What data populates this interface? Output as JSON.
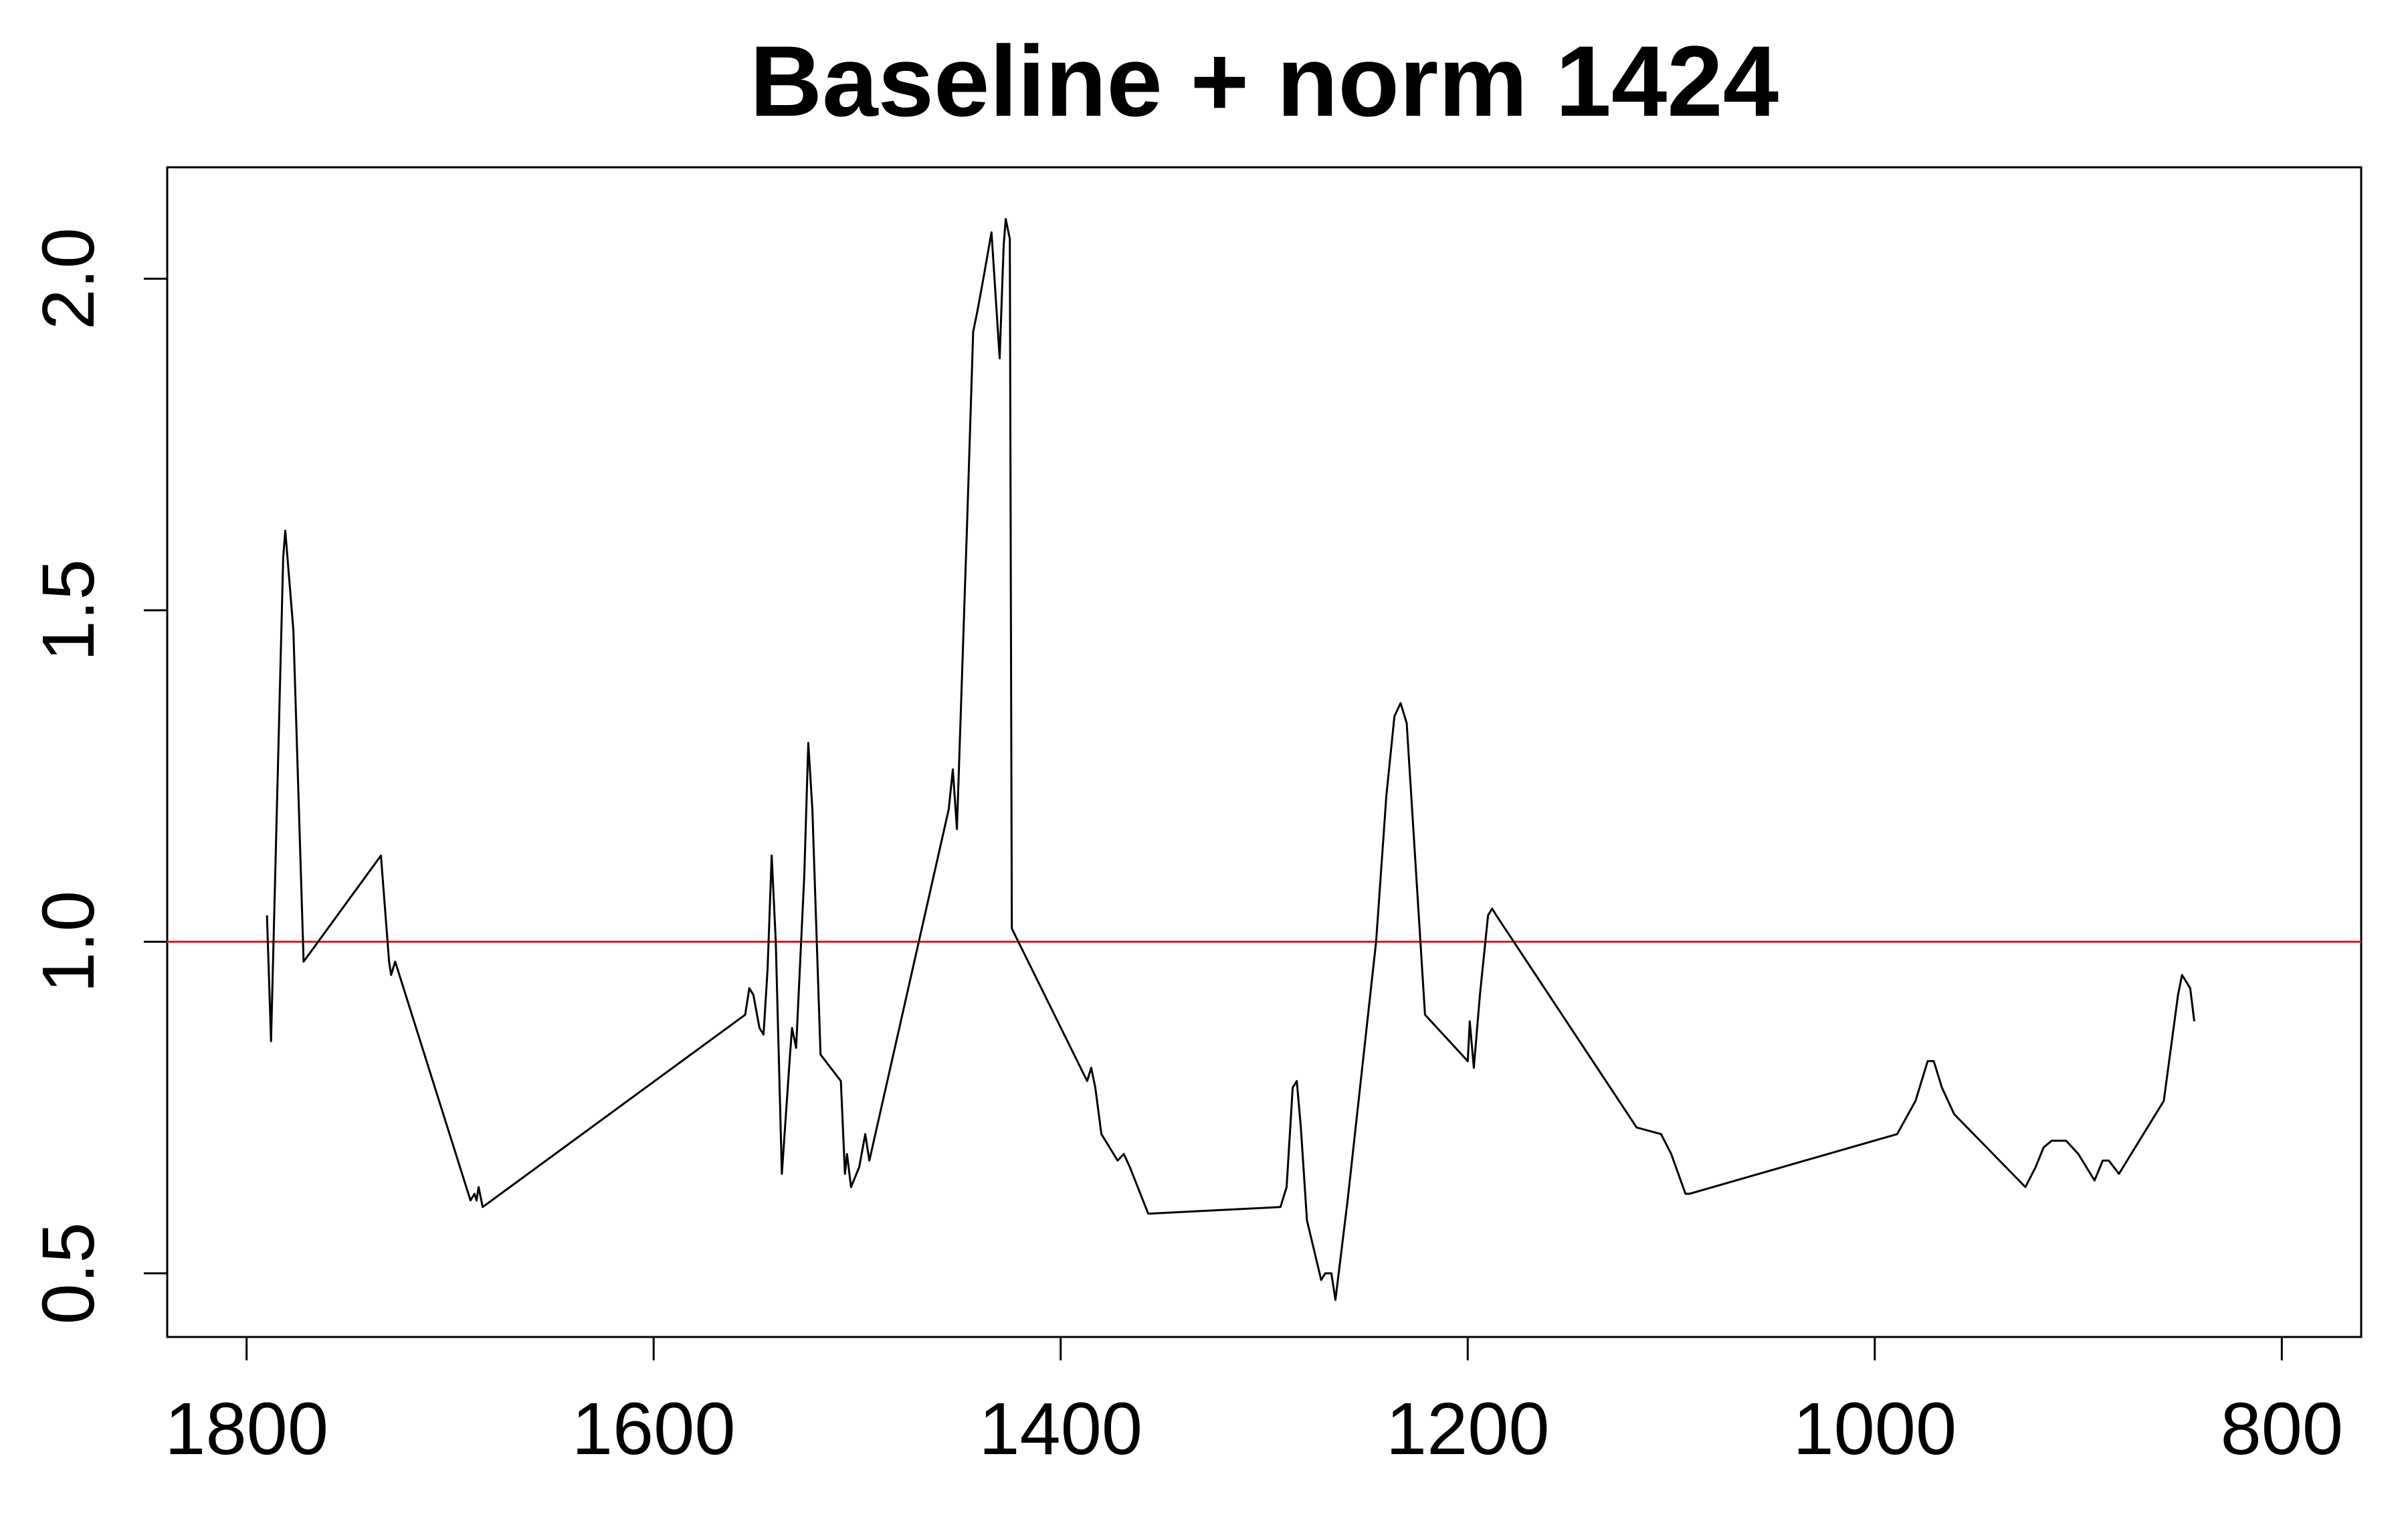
{
  "chart_data": {
    "type": "line",
    "title": "Baseline + norm 1424",
    "xlabel": "",
    "ylabel": "",
    "xlim": [
      1839,
      761
    ],
    "ylim": [
      0.404,
      2.168
    ],
    "x_reversed": true,
    "x_ticks": [
      1800,
      1600,
      1400,
      1200,
      1000,
      800
    ],
    "x_tick_labels": [
      "1800",
      "1600",
      "1400",
      "1200",
      "1000",
      "800"
    ],
    "y_ticks": [
      0.5,
      1.0,
      1.5,
      2.0
    ],
    "y_tick_labels": [
      "0.5",
      "1.0",
      "1.5",
      "2.0"
    ],
    "grid": false,
    "legend": "none",
    "reference_line": {
      "y": 1.0,
      "color": "#e8141b"
    },
    "series": [
      {
        "color": "#000000",
        "points": [
          [
            1790,
            1.04
          ],
          [
            1788,
            0.85
          ],
          [
            1782,
            1.58
          ],
          [
            1781,
            1.62
          ],
          [
            1777,
            1.47
          ],
          [
            1772,
            0.97
          ],
          [
            1734,
            1.13
          ],
          [
            1730,
            0.97
          ],
          [
            1729,
            0.95
          ],
          [
            1727,
            0.97
          ],
          [
            1690,
            0.61
          ],
          [
            1688,
            0.62
          ],
          [
            1687,
            0.61
          ],
          [
            1686,
            0.63
          ],
          [
            1684,
            0.6
          ],
          [
            1555,
            0.89
          ],
          [
            1553,
            0.93
          ],
          [
            1551,
            0.92
          ],
          [
            1548,
            0.87
          ],
          [
            1546,
            0.86
          ],
          [
            1544,
            0.96
          ],
          [
            1542,
            1.13
          ],
          [
            1540,
            1.0
          ],
          [
            1537,
            0.65
          ],
          [
            1533,
            0.83
          ],
          [
            1532,
            0.87
          ],
          [
            1530,
            0.84
          ],
          [
            1526,
            1.1
          ],
          [
            1524,
            1.3
          ],
          [
            1522,
            1.2
          ],
          [
            1518,
            0.83
          ],
          [
            1508,
            0.79
          ],
          [
            1506,
            0.65
          ],
          [
            1505,
            0.68
          ],
          [
            1503,
            0.63
          ],
          [
            1499,
            0.66
          ],
          [
            1496,
            0.71
          ],
          [
            1494,
            0.67
          ],
          [
            1455,
            1.2
          ],
          [
            1453,
            1.26
          ],
          [
            1451,
            1.17
          ],
          [
            1446,
            1.63
          ],
          [
            1443,
            1.92
          ],
          [
            1441,
            1.95
          ],
          [
            1438,
            2.0
          ],
          [
            1434,
            2.07
          ],
          [
            1430,
            1.88
          ],
          [
            1428,
            2.05
          ],
          [
            1427,
            2.09
          ],
          [
            1425,
            2.06
          ],
          [
            1424,
            1.02
          ],
          [
            1387,
            0.79
          ],
          [
            1385,
            0.81
          ],
          [
            1383,
            0.78
          ],
          [
            1380,
            0.71
          ],
          [
            1372,
            0.67
          ],
          [
            1369,
            0.68
          ],
          [
            1366,
            0.66
          ],
          [
            1357,
            0.59
          ],
          [
            1292,
            0.6
          ],
          [
            1289,
            0.63
          ],
          [
            1286,
            0.78
          ],
          [
            1284,
            0.79
          ],
          [
            1282,
            0.72
          ],
          [
            1279,
            0.58
          ],
          [
            1272,
            0.49
          ],
          [
            1270,
            0.5
          ],
          [
            1267,
            0.5
          ],
          [
            1265,
            0.46
          ],
          [
            1259,
            0.61
          ],
          [
            1245,
            1.0
          ],
          [
            1240,
            1.22
          ],
          [
            1236,
            1.34
          ],
          [
            1233,
            1.36
          ],
          [
            1230,
            1.33
          ],
          [
            1221,
            0.89
          ],
          [
            1200,
            0.82
          ],
          [
            1199,
            0.88
          ],
          [
            1197,
            0.81
          ],
          [
            1194,
            0.92
          ],
          [
            1190,
            1.04
          ],
          [
            1188,
            1.05
          ],
          [
            1186,
            1.04
          ],
          [
            1117,
            0.72
          ],
          [
            1105,
            0.71
          ],
          [
            1100,
            0.68
          ],
          [
            1093,
            0.62
          ],
          [
            1091,
            0.62
          ],
          [
            989,
            0.71
          ],
          [
            980,
            0.76
          ],
          [
            974,
            0.82
          ],
          [
            971,
            0.82
          ],
          [
            967,
            0.78
          ],
          [
            961,
            0.74
          ],
          [
            926,
            0.63
          ],
          [
            921,
            0.66
          ],
          [
            917,
            0.69
          ],
          [
            913,
            0.7
          ],
          [
            906,
            0.7
          ],
          [
            900,
            0.68
          ],
          [
            892,
            0.64
          ],
          [
            888,
            0.67
          ],
          [
            885,
            0.67
          ],
          [
            880,
            0.65
          ],
          [
            858,
            0.76
          ],
          [
            851,
            0.92
          ],
          [
            849,
            0.95
          ],
          [
            845,
            0.93
          ],
          [
            843,
            0.88
          ]
        ]
      }
    ]
  }
}
